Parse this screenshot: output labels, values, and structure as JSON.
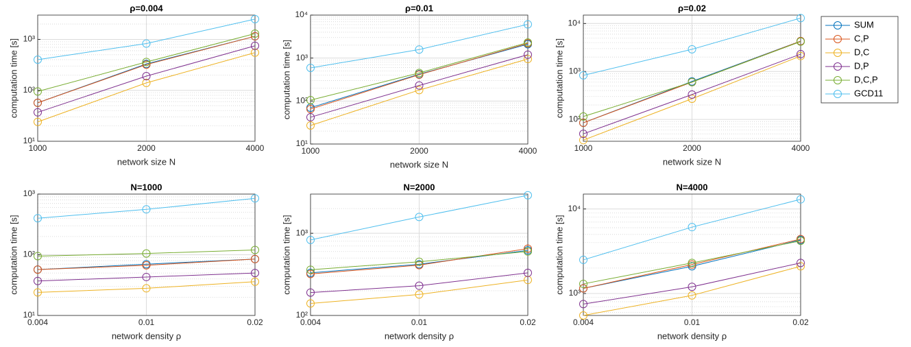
{
  "chart_data": [
    {
      "type": "line",
      "title": "ρ=0.004",
      "xlabel": "network size N",
      "ylabel": "computation time [s]",
      "log_y": true,
      "grid": true,
      "categories": [
        "1000",
        "2000",
        "4000"
      ],
      "ylim": [
        10,
        3000
      ],
      "yticks": [
        {
          "value": 10,
          "label": "10¹"
        },
        {
          "value": 100,
          "label": "10²"
        },
        {
          "value": 1000,
          "label": "10³"
        }
      ],
      "series": [
        {
          "name": "SUM",
          "color": "#0072BD",
          "values": [
            57,
            330,
            1150
          ]
        },
        {
          "name": "C,P",
          "color": "#D95319",
          "values": [
            57,
            320,
            1150
          ]
        },
        {
          "name": "D,C",
          "color": "#EDB120",
          "values": [
            24,
            140,
            550
          ]
        },
        {
          "name": "D,P",
          "color": "#7E2F8E",
          "values": [
            37,
            190,
            750
          ]
        },
        {
          "name": "D,C,P",
          "color": "#77AC30",
          "values": [
            95,
            360,
            1300
          ]
        },
        {
          "name": "GCD11",
          "color": "#4DBEEE",
          "values": [
            400,
            830,
            2500
          ]
        }
      ]
    },
    {
      "type": "line",
      "title": "ρ=0.01",
      "xlabel": "network size N",
      "ylabel": "computation time [s]",
      "log_y": true,
      "grid": true,
      "categories": [
        "1000",
        "2000",
        "4000"
      ],
      "ylim": [
        10,
        10000
      ],
      "yticks": [
        {
          "value": 10,
          "label": "10¹"
        },
        {
          "value": 100,
          "label": "10²"
        },
        {
          "value": 1000,
          "label": "10³"
        },
        {
          "value": 10000,
          "label": "10⁴"
        }
      ],
      "series": [
        {
          "name": "SUM",
          "color": "#0072BD",
          "values": [
            70,
            420,
            2100
          ]
        },
        {
          "name": "C,P",
          "color": "#D95319",
          "values": [
            65,
            410,
            2200
          ]
        },
        {
          "name": "D,C",
          "color": "#EDB120",
          "values": [
            27,
            180,
            950
          ]
        },
        {
          "name": "D,P",
          "color": "#7E2F8E",
          "values": [
            42,
            230,
            1200
          ]
        },
        {
          "name": "D,C,P",
          "color": "#77AC30",
          "values": [
            105,
            450,
            2300
          ]
        },
        {
          "name": "GCD11",
          "color": "#4DBEEE",
          "values": [
            590,
            1580,
            6100
          ]
        }
      ]
    },
    {
      "type": "line",
      "title": "ρ=0.02",
      "xlabel": "network size N",
      "ylabel": "computation time [s]",
      "log_y": true,
      "grid": true,
      "categories": [
        "1000",
        "2000",
        "4000"
      ],
      "ylim": [
        35,
        15000
      ],
      "yticks": [
        {
          "value": 100,
          "label": "10²"
        },
        {
          "value": 1000,
          "label": "10³"
        },
        {
          "value": 10000,
          "label": "10⁴"
        }
      ],
      "series": [
        {
          "name": "SUM",
          "color": "#0072BD",
          "values": [
            85,
            620,
            4300
          ]
        },
        {
          "name": "C,P",
          "color": "#D95319",
          "values": [
            85,
            600,
            4300
          ]
        },
        {
          "name": "D,C",
          "color": "#EDB120",
          "values": [
            37,
            270,
            2100
          ]
        },
        {
          "name": "D,P",
          "color": "#7E2F8E",
          "values": [
            50,
            330,
            2300
          ]
        },
        {
          "name": "D,C,P",
          "color": "#77AC30",
          "values": [
            115,
            600,
            4200
          ]
        },
        {
          "name": "GCD11",
          "color": "#4DBEEE",
          "values": [
            830,
            2900,
            13000
          ]
        }
      ]
    },
    {
      "type": "line",
      "title": "N=1000",
      "xlabel": "network density ρ",
      "ylabel": "computation time [s]",
      "log_y": true,
      "grid": true,
      "categories": [
        "0.004",
        "0.01",
        "0.02"
      ],
      "ylim": [
        10,
        1000
      ],
      "yticks": [
        {
          "value": 10,
          "label": "10¹"
        },
        {
          "value": 100,
          "label": "10²"
        },
        {
          "value": 1000,
          "label": "10³"
        }
      ],
      "series": [
        {
          "name": "SUM",
          "color": "#0072BD",
          "values": [
            57,
            70,
            85
          ]
        },
        {
          "name": "C,P",
          "color": "#D95319",
          "values": [
            57,
            67,
            85
          ]
        },
        {
          "name": "D,C",
          "color": "#EDB120",
          "values": [
            24,
            28,
            36
          ]
        },
        {
          "name": "D,P",
          "color": "#7E2F8E",
          "values": [
            37,
            43,
            50
          ]
        },
        {
          "name": "D,C,P",
          "color": "#77AC30",
          "values": [
            95,
            105,
            120
          ]
        },
        {
          "name": "GCD11",
          "color": "#4DBEEE",
          "values": [
            400,
            560,
            850
          ]
        }
      ]
    },
    {
      "type": "line",
      "title": "N=2000",
      "xlabel": "network density ρ",
      "ylabel": "computation time [s]",
      "log_y": true,
      "grid": true,
      "categories": [
        "0.004",
        "0.01",
        "0.02"
      ],
      "ylim": [
        100,
        3000
      ],
      "yticks": [
        {
          "value": 100,
          "label": "10²"
        },
        {
          "value": 1000,
          "label": "10³"
        }
      ],
      "series": [
        {
          "name": "SUM",
          "color": "#0072BD",
          "values": [
            330,
            420,
            620
          ]
        },
        {
          "name": "C,P",
          "color": "#D95319",
          "values": [
            320,
            410,
            650
          ]
        },
        {
          "name": "D,C",
          "color": "#EDB120",
          "values": [
            140,
            180,
            270
          ]
        },
        {
          "name": "D,P",
          "color": "#7E2F8E",
          "values": [
            190,
            230,
            330
          ]
        },
        {
          "name": "D,C,P",
          "color": "#77AC30",
          "values": [
            360,
            450,
            600
          ]
        },
        {
          "name": "GCD11",
          "color": "#4DBEEE",
          "values": [
            830,
            1580,
            2900
          ]
        }
      ]
    },
    {
      "type": "line",
      "title": "N=4000",
      "xlabel": "network density ρ",
      "ylabel": "computation time [s]",
      "log_y": true,
      "grid": true,
      "categories": [
        "0.004",
        "0.01",
        "0.02"
      ],
      "ylim": [
        550,
        15000
      ],
      "yticks": [
        {
          "value": 1000,
          "label": "10³"
        },
        {
          "value": 10000,
          "label": "10⁴"
        }
      ],
      "series": [
        {
          "name": "SUM",
          "color": "#0072BD",
          "values": [
            1150,
            2100,
            4300
          ]
        },
        {
          "name": "C,P",
          "color": "#D95319",
          "values": [
            1150,
            2200,
            4400
          ]
        },
        {
          "name": "D,C",
          "color": "#EDB120",
          "values": [
            550,
            950,
            2100
          ]
        },
        {
          "name": "D,P",
          "color": "#7E2F8E",
          "values": [
            750,
            1200,
            2300
          ]
        },
        {
          "name": "D,C,P",
          "color": "#77AC30",
          "values": [
            1300,
            2300,
            4200
          ]
        },
        {
          "name": "GCD11",
          "color": "#4DBEEE",
          "values": [
            2500,
            6100,
            13000
          ]
        }
      ]
    }
  ]
}
